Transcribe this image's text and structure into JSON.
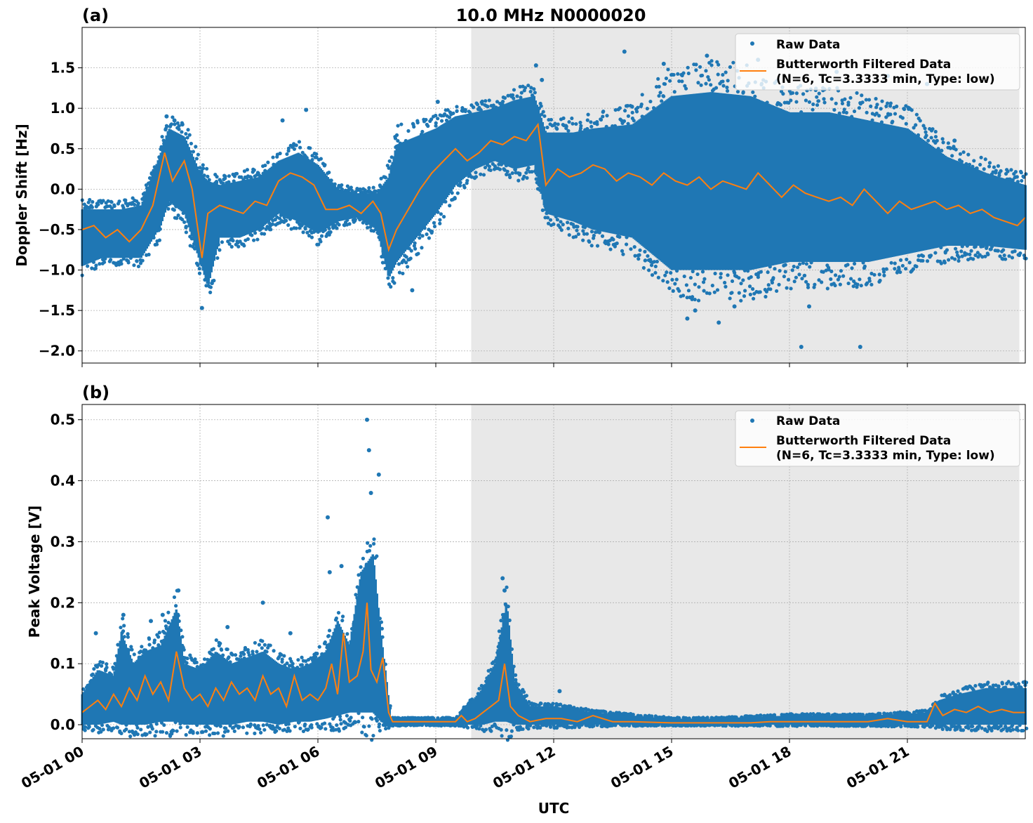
{
  "figure": {
    "title": "10.0 MHz N0000020",
    "xlabel": "UTC",
    "x_ticks": [
      "05-01 00",
      "05-01 03",
      "05-01 06",
      "05-01 09",
      "05-01 12",
      "05-01 15",
      "05-01 18",
      "05-01 21"
    ],
    "colors": {
      "raw": "#1f77b4",
      "filtered": "#ff7f0e",
      "shade": "#e8e8e8",
      "grid": "#b0b0b0"
    }
  },
  "chart_data": [
    {
      "type": "scatter",
      "panel_label": "(a)",
      "title": "10.0 MHz N0000020",
      "xlabel": "",
      "ylabel": "Doppler Shift [Hz]",
      "x_unit": "hours UTC on 05-01",
      "xlim": [
        0,
        24
      ],
      "ylim": [
        -2.15,
        2.0
      ],
      "yticks": [
        -2.0,
        -1.5,
        -1.0,
        -0.5,
        0.0,
        0.5,
        1.0,
        1.5
      ],
      "ytick_labels": [
        "−2.0",
        "−1.5",
        "−1.0",
        "−0.5",
        "0.0",
        "0.5",
        "1.0",
        "1.5"
      ],
      "grid": true,
      "shaded_x_range": [
        9.9,
        23.85
      ],
      "legend": {
        "position": "top-right",
        "entries": [
          "Raw Data",
          "Butterworth Filtered Data\n(N=6, Tc=3.3333 min, Type: low)"
        ]
      },
      "series": [
        {
          "name": "Raw Data",
          "style": "scatter",
          "band_x": [
            0,
            0.5,
            1.0,
            1.5,
            2.0,
            2.2,
            2.6,
            3.0,
            3.2,
            3.5,
            4.0,
            4.5,
            5.0,
            5.5,
            6.0,
            6.5,
            7.0,
            7.5,
            7.8,
            8.0,
            8.5,
            9.0,
            9.5,
            10.0,
            10.5,
            11.0,
            11.5,
            11.8,
            12.5,
            13.0,
            14.0,
            15.0,
            16.0,
            17.0,
            18.0,
            19.0,
            20.0,
            21.0,
            22.0,
            23.0,
            24.0
          ],
          "band_low": [
            -0.95,
            -0.85,
            -0.85,
            -0.85,
            -0.45,
            -0.15,
            -0.3,
            -0.9,
            -1.2,
            -0.6,
            -0.6,
            -0.5,
            -0.3,
            -0.4,
            -0.55,
            -0.4,
            -0.35,
            -0.5,
            -1.1,
            -0.9,
            -0.6,
            -0.3,
            0.05,
            0.25,
            0.35,
            0.25,
            0.3,
            -0.3,
            -0.4,
            -0.5,
            -0.6,
            -1.0,
            -1.0,
            -1.0,
            -0.9,
            -0.9,
            -0.9,
            -0.8,
            -0.7,
            -0.7,
            -0.75
          ],
          "band_high": [
            -0.25,
            -0.25,
            -0.25,
            -0.2,
            0.45,
            0.75,
            0.65,
            0.2,
            0.1,
            0.05,
            0.1,
            0.15,
            0.35,
            0.45,
            0.3,
            0.0,
            -0.05,
            -0.05,
            0.15,
            0.55,
            0.65,
            0.75,
            0.9,
            0.95,
            1.0,
            1.1,
            1.15,
            0.7,
            0.7,
            0.75,
            0.8,
            1.15,
            1.2,
            1.15,
            0.95,
            0.95,
            0.85,
            0.75,
            0.4,
            0.2,
            0.05
          ],
          "outliers_x": [
            2.15,
            2.35,
            2.55,
            3.05,
            5.1,
            5.7,
            8.4,
            9.05,
            11.55,
            11.7,
            13.8,
            14.8,
            15.4,
            15.6,
            15.9,
            16.2,
            16.6,
            17.2,
            18.3,
            18.5,
            19.2,
            19.8,
            20.5,
            21.5,
            22.2
          ],
          "outliers_y": [
            0.9,
            0.85,
            0.8,
            -1.47,
            0.85,
            0.98,
            -1.25,
            1.08,
            1.53,
            1.35,
            1.7,
            1.55,
            -1.6,
            -1.5,
            1.65,
            -1.65,
            -1.45,
            1.6,
            -1.95,
            -1.45,
            1.45,
            -1.95,
            1.4,
            1.3,
            0.6
          ]
        },
        {
          "name": "Butterworth Filtered Data\n(N=6, Tc=3.3333 min, Type: low)",
          "style": "line",
          "x": [
            0,
            0.3,
            0.6,
            0.9,
            1.2,
            1.5,
            1.8,
            2.1,
            2.3,
            2.6,
            2.8,
            3.05,
            3.2,
            3.5,
            3.8,
            4.1,
            4.4,
            4.7,
            5.0,
            5.3,
            5.6,
            5.9,
            6.2,
            6.5,
            6.8,
            7.1,
            7.4,
            7.6,
            7.8,
            8.0,
            8.3,
            8.6,
            8.9,
            9.2,
            9.5,
            9.8,
            10.1,
            10.4,
            10.7,
            11.0,
            11.3,
            11.6,
            11.8,
            12.1,
            12.4,
            12.7,
            13.0,
            13.3,
            13.6,
            13.9,
            14.2,
            14.5,
            14.8,
            15.1,
            15.4,
            15.7,
            16.0,
            16.3,
            16.6,
            16.9,
            17.2,
            17.5,
            17.8,
            18.1,
            18.4,
            18.7,
            19.0,
            19.3,
            19.6,
            19.9,
            20.2,
            20.5,
            20.8,
            21.1,
            21.4,
            21.7,
            22.0,
            22.3,
            22.6,
            22.9,
            23.2,
            23.5,
            23.8,
            24.0
          ],
          "y": [
            -0.5,
            -0.45,
            -0.6,
            -0.5,
            -0.65,
            -0.5,
            -0.2,
            0.45,
            0.1,
            0.35,
            0.0,
            -0.85,
            -0.3,
            -0.2,
            -0.25,
            -0.3,
            -0.15,
            -0.2,
            0.1,
            0.2,
            0.15,
            0.05,
            -0.25,
            -0.25,
            -0.2,
            -0.3,
            -0.15,
            -0.3,
            -0.75,
            -0.5,
            -0.25,
            0.0,
            0.2,
            0.35,
            0.5,
            0.35,
            0.45,
            0.6,
            0.55,
            0.65,
            0.6,
            0.8,
            0.05,
            0.25,
            0.15,
            0.2,
            0.3,
            0.25,
            0.1,
            0.2,
            0.15,
            0.05,
            0.2,
            0.1,
            0.05,
            0.15,
            0.0,
            0.1,
            0.05,
            0.0,
            0.2,
            0.05,
            -0.1,
            0.05,
            -0.05,
            -0.1,
            -0.15,
            -0.1,
            -0.2,
            0.0,
            -0.15,
            -0.3,
            -0.15,
            -0.25,
            -0.2,
            -0.15,
            -0.25,
            -0.2,
            -0.3,
            -0.25,
            -0.35,
            -0.4,
            -0.45,
            -0.35
          ]
        }
      ]
    },
    {
      "type": "scatter",
      "panel_label": "(b)",
      "title": "",
      "xlabel": "UTC",
      "ylabel": "Peak Voltage [V]",
      "x_unit": "hours UTC on 05-01",
      "xlim": [
        0,
        24
      ],
      "ylim": [
        -0.023,
        0.525
      ],
      "yticks": [
        0.0,
        0.1,
        0.2,
        0.3,
        0.4,
        0.5
      ],
      "ytick_labels": [
        "0.0",
        "0.1",
        "0.2",
        "0.3",
        "0.4",
        "0.5"
      ],
      "grid": true,
      "shaded_x_range": [
        9.9,
        23.85
      ],
      "legend": {
        "position": "top-right",
        "entries": [
          "Raw Data",
          "Butterworth Filtered Data\n(N=6, Tc=3.3333 min, Type: low)"
        ]
      },
      "series": [
        {
          "name": "Raw Data",
          "style": "scatter",
          "band_x": [
            0,
            0.4,
            0.8,
            1.0,
            1.3,
            1.6,
            2.0,
            2.4,
            2.6,
            3.0,
            3.4,
            3.8,
            4.2,
            4.6,
            5.0,
            5.4,
            5.8,
            6.2,
            6.5,
            6.8,
            7.1,
            7.4,
            7.6,
            7.75,
            7.85,
            9.5,
            9.8,
            10.2,
            10.5,
            10.8,
            11.0,
            11.4,
            12.0,
            13.0,
            14.0,
            15.0,
            16.0,
            18.0,
            20.0,
            21.5,
            21.8,
            22.3,
            23.0,
            24.0
          ],
          "band_low": [
            0.0,
            0.0,
            0.005,
            0.0,
            0.0,
            0.0,
            0.005,
            0.005,
            0.0,
            0.0,
            0.0,
            0.0,
            0.005,
            0.005,
            0.0,
            0.005,
            0.005,
            0.01,
            0.015,
            0.02,
            0.02,
            0.02,
            0.005,
            0.0,
            0.0,
            0.0,
            0.0,
            0.0,
            0.005,
            0.005,
            0.0,
            0.0,
            0.0,
            0.0,
            0.0,
            0.0,
            0.0,
            0.0,
            0.0,
            0.0,
            0.0,
            0.0,
            0.0,
            0.0
          ],
          "band_high": [
            0.05,
            0.09,
            0.08,
            0.15,
            0.1,
            0.12,
            0.13,
            0.19,
            0.1,
            0.09,
            0.12,
            0.1,
            0.11,
            0.12,
            0.1,
            0.09,
            0.1,
            0.12,
            0.17,
            0.13,
            0.25,
            0.28,
            0.15,
            0.07,
            0.01,
            0.01,
            0.03,
            0.06,
            0.1,
            0.2,
            0.07,
            0.03,
            0.03,
            0.02,
            0.015,
            0.01,
            0.01,
            0.015,
            0.015,
            0.02,
            0.04,
            0.05,
            0.06,
            0.06
          ],
          "outliers_x": [
            0.35,
            1.05,
            1.75,
            2.05,
            2.45,
            3.7,
            4.6,
            5.3,
            6.25,
            6.3,
            6.6,
            7.25,
            7.3,
            7.35,
            7.55,
            10.7,
            10.75,
            12.15
          ],
          "outliers_y": [
            0.15,
            0.18,
            0.17,
            0.18,
            0.22,
            0.16,
            0.2,
            0.15,
            0.34,
            0.25,
            0.26,
            0.5,
            0.45,
            0.38,
            0.41,
            0.24,
            0.22,
            0.055
          ]
        },
        {
          "name": "Butterworth Filtered Data\n(N=6, Tc=3.3333 min, Type: low)",
          "style": "line",
          "x": [
            0,
            0.2,
            0.4,
            0.6,
            0.8,
            1.0,
            1.2,
            1.4,
            1.6,
            1.8,
            2.0,
            2.2,
            2.4,
            2.6,
            2.8,
            3.0,
            3.2,
            3.4,
            3.6,
            3.8,
            4.0,
            4.2,
            4.4,
            4.6,
            4.8,
            5.0,
            5.2,
            5.4,
            5.6,
            5.8,
            6.0,
            6.2,
            6.35,
            6.5,
            6.65,
            6.8,
            7.0,
            7.15,
            7.25,
            7.35,
            7.5,
            7.65,
            7.8,
            7.9,
            8.5,
            9.0,
            9.5,
            9.65,
            9.8,
            10.0,
            10.2,
            10.4,
            10.6,
            10.75,
            10.9,
            11.1,
            11.4,
            11.8,
            12.2,
            12.6,
            13.0,
            13.5,
            14.0,
            15.0,
            16.0,
            17.0,
            17.5,
            18.0,
            19.0,
            20.0,
            20.5,
            21.0,
            21.5,
            21.7,
            21.9,
            22.2,
            22.5,
            22.8,
            23.1,
            23.4,
            23.7,
            24.0
          ],
          "y": [
            0.02,
            0.03,
            0.04,
            0.025,
            0.05,
            0.03,
            0.06,
            0.04,
            0.08,
            0.05,
            0.07,
            0.04,
            0.12,
            0.06,
            0.04,
            0.05,
            0.03,
            0.06,
            0.04,
            0.07,
            0.05,
            0.06,
            0.04,
            0.08,
            0.05,
            0.06,
            0.03,
            0.08,
            0.04,
            0.05,
            0.04,
            0.06,
            0.1,
            0.05,
            0.15,
            0.07,
            0.08,
            0.12,
            0.2,
            0.09,
            0.07,
            0.11,
            0.02,
            0.005,
            0.005,
            0.005,
            0.005,
            0.015,
            0.005,
            0.01,
            0.02,
            0.03,
            0.04,
            0.1,
            0.03,
            0.015,
            0.005,
            0.01,
            0.01,
            0.005,
            0.015,
            0.005,
            0.005,
            0.003,
            0.003,
            0.003,
            0.005,
            0.005,
            0.005,
            0.005,
            0.01,
            0.005,
            0.005,
            0.035,
            0.015,
            0.025,
            0.02,
            0.03,
            0.02,
            0.025,
            0.02,
            0.02
          ]
        }
      ]
    }
  ]
}
